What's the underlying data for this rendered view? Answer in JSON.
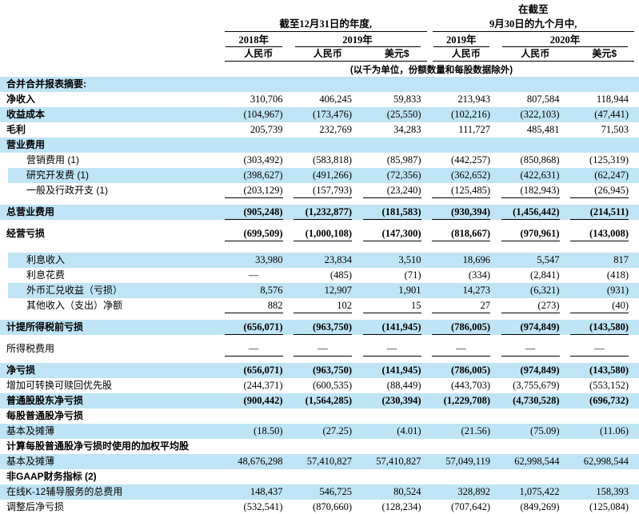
{
  "unit_note": "(以千为单位，份额数量和每股数据除外)",
  "header": {
    "period_groups": [
      {
        "pre_title": "",
        "title": "截至12月31日的年度,",
        "years": [
          {
            "label": "2018年",
            "span": 1
          },
          {
            "label": "2019年",
            "span": 2
          }
        ],
        "currencies": [
          "人民币",
          "人民币",
          "美元$"
        ]
      },
      {
        "pre_title": "在截至",
        "title": "9月30日的九个月中,",
        "years": [
          {
            "label": "2019年",
            "span": 1
          },
          {
            "label": "2020年",
            "span": 2
          }
        ],
        "currencies": [
          "人民币",
          "人民币",
          "美元$"
        ]
      }
    ]
  },
  "colors": {
    "stripe": "#bee4f5",
    "text": "#000000"
  },
  "rows": [
    {
      "label": "合并合并报表摘要:",
      "bold": true,
      "stripe": true,
      "values": [
        "",
        "",
        "",
        "",
        "",
        ""
      ]
    },
    {
      "label": "净收入",
      "bold": true,
      "values": [
        "310,706",
        "406,245",
        "59,833",
        "213,943",
        "807,584",
        "118,944"
      ]
    },
    {
      "label": "收益成本",
      "bold": true,
      "stripe": true,
      "values": [
        "(104,967)",
        "(173,476)",
        "(25,550)",
        "(102,216)",
        "(322,103)",
        "(47,441)"
      ]
    },
    {
      "label": "毛利",
      "bold": true,
      "values": [
        "205,739",
        "232,769",
        "34,283",
        "111,727",
        "485,481",
        "71,503"
      ]
    },
    {
      "label": "营业费用",
      "bold": true,
      "stripe": true,
      "values": [
        "",
        "",
        "",
        "",
        "",
        ""
      ]
    },
    {
      "label": "营销费用 (1)",
      "indent": true,
      "values": [
        "(303,492)",
        "(583,818)",
        "(85,987)",
        "(442,257)",
        "(850,868)",
        "(125,319)"
      ]
    },
    {
      "label": "研究开发费 (1)",
      "indent": true,
      "stripe": true,
      "values": [
        "(398,627)",
        "(491,266)",
        "(72,356)",
        "(362,652)",
        "(422,631)",
        "(62,247)"
      ]
    },
    {
      "label": "一般及行政开支 (1)",
      "indent": true,
      "underline": true,
      "values": [
        "(203,129)",
        "(157,793)",
        "(23,240)",
        "(125,485)",
        "(182,943)",
        "(26,945)"
      ]
    },
    {
      "label": "总营业费用",
      "bold": true,
      "bold_values": true,
      "stripe": true,
      "underline": true,
      "gap_before": "s",
      "values": [
        "(905,248)",
        "(1,232,877)",
        "(181,583)",
        "(930,394)",
        "(1,456,442)",
        "(214,511)"
      ]
    },
    {
      "label": "经营亏损",
      "bold": true,
      "bold_values": true,
      "underline": true,
      "gap_before": "s",
      "values": [
        "(699,509)",
        "(1,000,108)",
        "(147,300)",
        "(818,667)",
        "(970,961)",
        "(143,008)"
      ]
    },
    {
      "label": "利息收入",
      "indent": true,
      "stripe": true,
      "gap_before": "l",
      "values": [
        "33,980",
        "23,834",
        "3,510",
        "18,696",
        "5,547",
        "817"
      ]
    },
    {
      "label": "利息花费",
      "indent": true,
      "values": [
        "—",
        "(485)",
        "(71)",
        "(334)",
        "(2,841)",
        "(418)"
      ]
    },
    {
      "label": "外币汇兑收益（亏损）",
      "indent": true,
      "stripe": true,
      "values": [
        "8,576",
        "12,907",
        "1,901",
        "14,273",
        "(6,321)",
        "(931)"
      ]
    },
    {
      "label": "其他收入（支出）净额",
      "indent": true,
      "underline": true,
      "values": [
        "882",
        "102",
        "15",
        "27",
        "(273)",
        "(40)"
      ]
    },
    {
      "label": "计提所得税前亏损",
      "bold": true,
      "bold_values": true,
      "stripe": true,
      "underline": true,
      "gap_before": "s",
      "values": [
        "(656,071)",
        "(963,750)",
        "(141,945)",
        "(786,005)",
        "(974,849)",
        "(143,580)"
      ]
    },
    {
      "label": "所得税费用",
      "underline": true,
      "gap_before": "s",
      "values": [
        "—",
        "—",
        "—",
        "—",
        "—",
        "—"
      ]
    },
    {
      "label": "净亏损",
      "bold": true,
      "bold_values": true,
      "stripe": true,
      "gap_before": "s",
      "values": [
        "(656,071)",
        "(963,750)",
        "(141,945)",
        "(786,005)",
        "(974,849)",
        "(143,580)"
      ]
    },
    {
      "label": "增加可转换可赎回优先股",
      "values": [
        "(244,371)",
        "(600,535)",
        "(88,449)",
        "(443,703)",
        "(3,755,679)",
        "(553,152)"
      ]
    },
    {
      "label": "普通股股东净亏损",
      "bold": true,
      "bold_values": true,
      "stripe": true,
      "values": [
        "(900,442)",
        "(1,564,285)",
        "(230,394)",
        "(1,229,708)",
        "(4,730,528)",
        "(696,732)"
      ]
    },
    {
      "label": "每股普通股净亏损",
      "bold": true,
      "values": [
        "",
        "",
        "",
        "",
        "",
        ""
      ]
    },
    {
      "label": "基本及摊薄",
      "stripe": true,
      "values": [
        "(18.50)",
        "(27.25)",
        "(4.01)",
        "(21.56)",
        "(75.09)",
        "(11.06)"
      ]
    },
    {
      "label": "计算每股普通股净亏损时使用的加权平均股",
      "bold": true,
      "values": [
        "",
        "",
        "",
        "",
        "",
        ""
      ]
    },
    {
      "label": "基本及摊薄",
      "stripe": true,
      "values": [
        "48,676,298",
        "57,410,827",
        "57,410,827",
        "57,049,119",
        "62,998,544",
        "62,998,544"
      ]
    },
    {
      "label": "非GAAP财务指标 (2)",
      "bold": true,
      "values": [
        "",
        "",
        "",
        "",
        "",
        ""
      ]
    },
    {
      "label": "在线K-12辅导服务的总费用",
      "stripe": true,
      "values": [
        "148,437",
        "546,725",
        "80,524",
        "328,892",
        "1,075,422",
        "158,393"
      ]
    },
    {
      "label": "调整后净亏损",
      "values": [
        "(532,541)",
        "(870,660)",
        "(128,234)",
        "(707,642)",
        "(849,269)",
        "(125,084)"
      ]
    }
  ]
}
